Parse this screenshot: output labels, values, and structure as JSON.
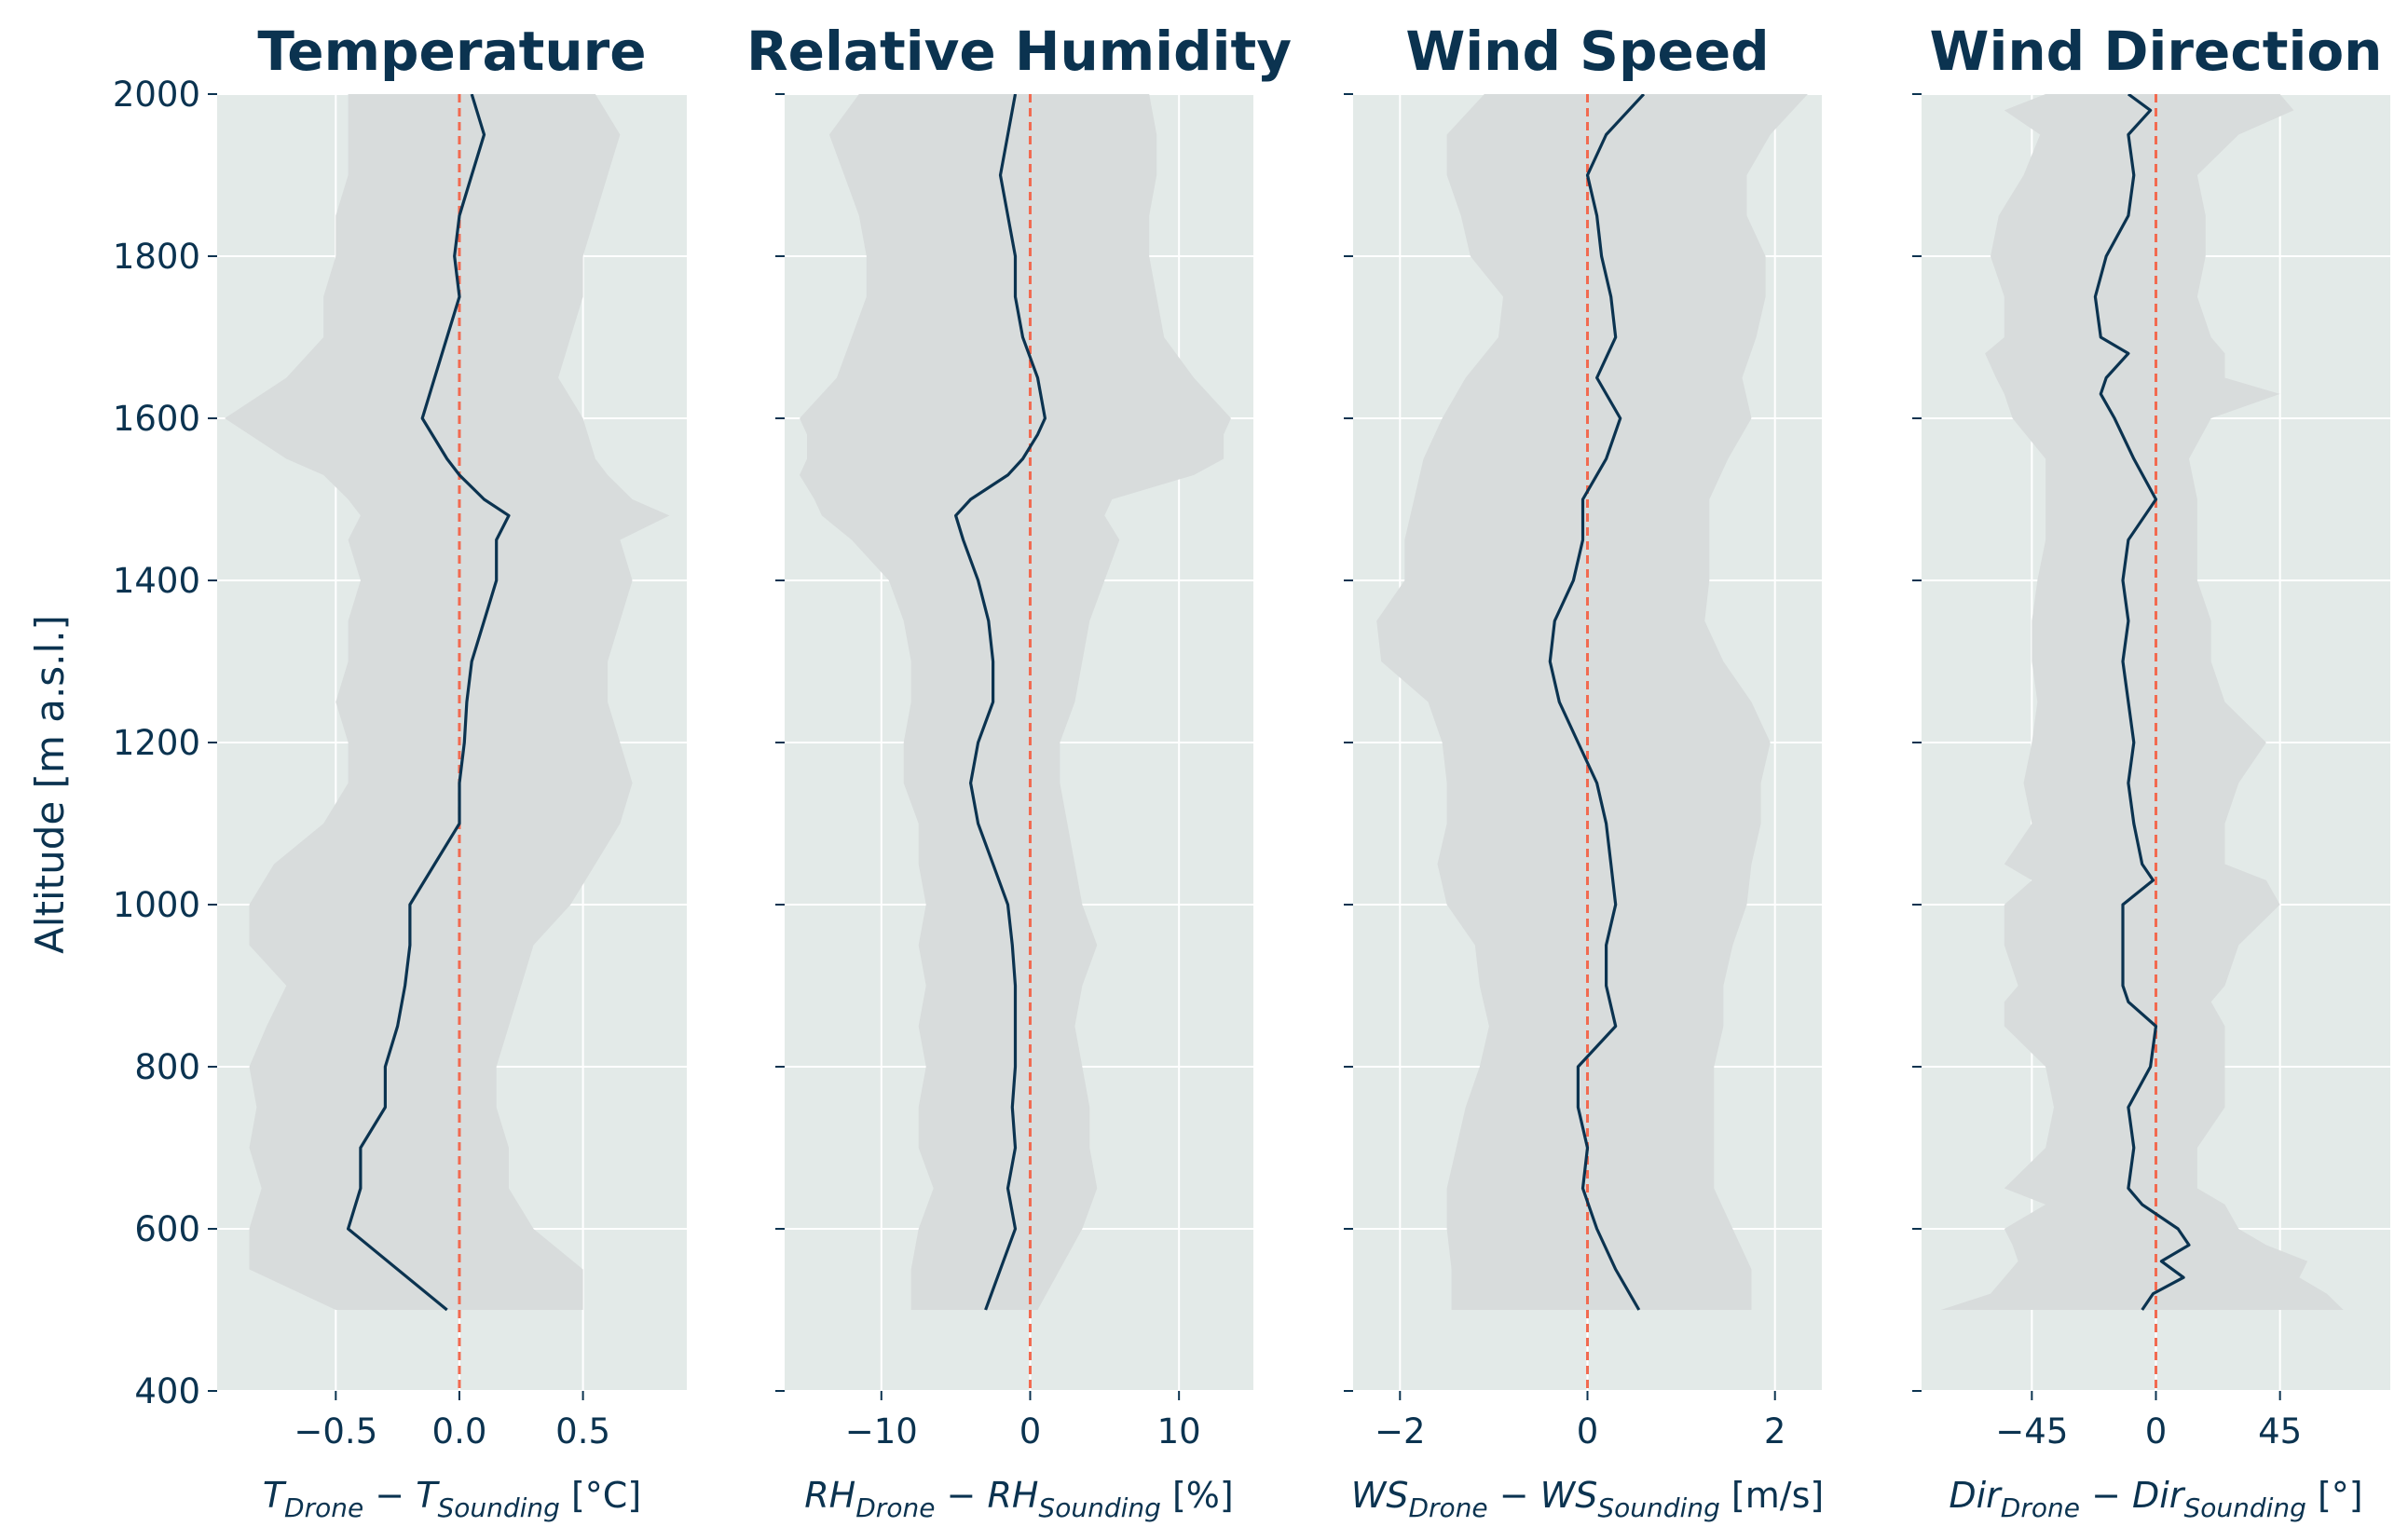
{
  "colors": {
    "panel_bg": "#e3eae8",
    "band": "#d8dcdc",
    "line": "#0b3350",
    "zero": "#f26a50",
    "grid": "#ffffff",
    "text": "#0b3350"
  },
  "chart_data": {
    "type": "line",
    "shared_y": {
      "label": "Altitude [m a.s.l.]",
      "ylim": [
        400,
        2000
      ],
      "ticks": [
        400,
        600,
        800,
        1000,
        1200,
        1400,
        1600,
        1800,
        2000
      ],
      "tick_labels": [
        "400",
        "600",
        "800",
        "1000",
        "1200",
        "1400",
        "1600",
        "1800",
        "2000"
      ]
    },
    "reference_line": {
      "x": 0,
      "style": "dashed"
    },
    "panels": [
      {
        "title": "Temperature",
        "xlabel": {
          "a": "T",
          "a_sub": "Drone",
          "op": "−",
          "b": "T",
          "b_sub": "Sounding",
          "unit": "[°C]"
        },
        "xlim": [
          -0.98,
          0.92
        ],
        "xticks": [
          -0.5,
          0.0,
          0.5
        ],
        "xtick_labels": [
          "−0.5",
          "0.0",
          "0.5"
        ],
        "altitude": [
          500,
          550,
          600,
          650,
          700,
          750,
          800,
          850,
          900,
          950,
          1000,
          1050,
          1100,
          1150,
          1200,
          1250,
          1300,
          1350,
          1400,
          1450,
          1480,
          1500,
          1530,
          1550,
          1600,
          1650,
          1700,
          1750,
          1800,
          1850,
          1900,
          1950,
          2000
        ],
        "mean": [
          -0.05,
          -0.25,
          -0.45,
          -0.4,
          -0.4,
          -0.3,
          -0.3,
          -0.25,
          -0.22,
          -0.2,
          -0.2,
          -0.1,
          0.0,
          0.0,
          0.02,
          0.03,
          0.05,
          0.1,
          0.15,
          0.15,
          0.2,
          0.1,
          0.0,
          -0.05,
          -0.15,
          -0.1,
          -0.05,
          0.0,
          -0.02,
          0.0,
          0.05,
          0.1,
          0.05
        ],
        "lower": [
          -0.5,
          -0.85,
          -0.85,
          -0.8,
          -0.85,
          -0.82,
          -0.85,
          -0.78,
          -0.7,
          -0.85,
          -0.85,
          -0.75,
          -0.55,
          -0.45,
          -0.45,
          -0.5,
          -0.45,
          -0.45,
          -0.4,
          -0.45,
          -0.4,
          -0.45,
          -0.55,
          -0.7,
          -0.95,
          -0.7,
          -0.55,
          -0.55,
          -0.5,
          -0.5,
          -0.45,
          -0.45,
          -0.45
        ],
        "upper": [
          0.5,
          0.5,
          0.3,
          0.2,
          0.2,
          0.15,
          0.15,
          0.2,
          0.25,
          0.3,
          0.45,
          0.55,
          0.65,
          0.7,
          0.65,
          0.6,
          0.6,
          0.65,
          0.7,
          0.65,
          0.85,
          0.7,
          0.6,
          0.55,
          0.5,
          0.4,
          0.45,
          0.5,
          0.5,
          0.55,
          0.6,
          0.65,
          0.55
        ]
      },
      {
        "title": "Relative Humidity",
        "xlabel": {
          "a": "RH",
          "a_sub": "Drone",
          "op": "−",
          "b": "RH",
          "b_sub": "Sounding",
          "unit": "[%]"
        },
        "xlim": [
          -16.5,
          15
        ],
        "xticks": [
          -10,
          0,
          10
        ],
        "xtick_labels": [
          "−10",
          "0",
          "10"
        ],
        "altitude": [
          500,
          550,
          600,
          650,
          700,
          750,
          800,
          850,
          900,
          950,
          1000,
          1050,
          1100,
          1150,
          1200,
          1250,
          1300,
          1350,
          1400,
          1450,
          1480,
          1500,
          1530,
          1550,
          1580,
          1600,
          1650,
          1700,
          1750,
          1800,
          1850,
          1900,
          1950,
          2000
        ],
        "mean": [
          -3,
          -2,
          -1,
          -1.5,
          -1,
          -1.2,
          -1,
          -1,
          -1,
          -1.2,
          -1.5,
          -2.5,
          -3.5,
          -4,
          -3.5,
          -2.5,
          -2.5,
          -2.8,
          -3.5,
          -4.5,
          -5,
          -4,
          -1.5,
          -0.5,
          0.5,
          1,
          0.5,
          -0.5,
          -1,
          -1,
          -1.5,
          -2,
          -1.5,
          -1
        ],
        "lower": [
          -8,
          -8,
          -7.5,
          -6.5,
          -7.5,
          -7.5,
          -7,
          -7.5,
          -7,
          -7.5,
          -7,
          -7.5,
          -7.5,
          -8.5,
          -8.5,
          -8,
          -8,
          -8.5,
          -9.5,
          -12,
          -14,
          -14.5,
          -15.5,
          -15,
          -15,
          -15.5,
          -13,
          -12,
          -11,
          -11,
          -11.5,
          -12.5,
          -13.5,
          -11.5
        ],
        "upper": [
          0.5,
          2,
          3.5,
          4.5,
          4,
          4,
          3.5,
          3,
          3.5,
          4.5,
          3.5,
          3,
          2.5,
          2,
          2,
          3,
          3.5,
          4,
          5,
          6,
          5,
          5.5,
          11,
          13,
          13,
          13.5,
          11,
          9,
          8.5,
          8,
          8,
          8.5,
          8.5,
          8
        ]
      },
      {
        "title": "Wind Speed",
        "xlabel": {
          "a": "WS",
          "a_sub": "Drone",
          "op": "−",
          "b": "WS",
          "b_sub": "Sounding",
          "unit": "[m/s]"
        },
        "xlim": [
          -2.5,
          2.5
        ],
        "xticks": [
          -2,
          0,
          2
        ],
        "xtick_labels": [
          "−2",
          "0",
          "2"
        ],
        "altitude": [
          500,
          550,
          600,
          650,
          700,
          750,
          800,
          850,
          900,
          950,
          1000,
          1050,
          1100,
          1150,
          1200,
          1250,
          1300,
          1350,
          1400,
          1450,
          1500,
          1550,
          1600,
          1650,
          1700,
          1750,
          1800,
          1850,
          1900,
          1950,
          2000
        ],
        "mean": [
          0.55,
          0.3,
          0.1,
          -0.05,
          0.0,
          -0.1,
          -0.1,
          0.3,
          0.2,
          0.2,
          0.3,
          0.25,
          0.2,
          0.1,
          -0.1,
          -0.3,
          -0.4,
          -0.35,
          -0.15,
          -0.05,
          -0.05,
          0.2,
          0.35,
          0.1,
          0.3,
          0.25,
          0.15,
          0.1,
          0.0,
          0.2,
          0.6
        ],
        "lower": [
          -1.45,
          -1.45,
          -1.5,
          -1.5,
          -1.4,
          -1.3,
          -1.15,
          -1.05,
          -1.15,
          -1.2,
          -1.5,
          -1.6,
          -1.5,
          -1.5,
          -1.55,
          -1.7,
          -2.2,
          -2.25,
          -1.95,
          -1.95,
          -1.85,
          -1.75,
          -1.55,
          -1.3,
          -0.95,
          -0.9,
          -1.25,
          -1.35,
          -1.5,
          -1.5,
          -1.1
        ],
        "upper": [
          1.75,
          1.75,
          1.55,
          1.35,
          1.35,
          1.35,
          1.35,
          1.45,
          1.45,
          1.55,
          1.7,
          1.75,
          1.85,
          1.85,
          1.95,
          1.75,
          1.45,
          1.25,
          1.3,
          1.3,
          1.3,
          1.5,
          1.75,
          1.65,
          1.8,
          1.9,
          1.9,
          1.7,
          1.7,
          1.95,
          2.35
        ]
      },
      {
        "title": "Wind Direction",
        "xlabel": {
          "a": "Dir",
          "a_sub": "Drone",
          "op": "−",
          "b": "Dir",
          "b_sub": "Sounding",
          "unit": "[°]"
        },
        "xlim": [
          -85,
          85
        ],
        "xticks": [
          -45,
          0,
          45
        ],
        "xtick_labels": [
          "−45",
          "0",
          "45"
        ],
        "altitude": [
          500,
          520,
          540,
          560,
          580,
          600,
          630,
          650,
          700,
          750,
          800,
          850,
          880,
          900,
          950,
          1000,
          1030,
          1050,
          1100,
          1150,
          1200,
          1250,
          1300,
          1350,
          1400,
          1450,
          1500,
          1550,
          1600,
          1630,
          1650,
          1680,
          1700,
          1750,
          1800,
          1850,
          1900,
          1950,
          1980,
          2000
        ],
        "mean": [
          -5,
          -1,
          10,
          2,
          12,
          8,
          -5,
          -10,
          -8,
          -10,
          -2,
          0,
          -10,
          -12,
          -12,
          -12,
          -1,
          -5,
          -8,
          -10,
          -8,
          -10,
          -12,
          -10,
          -12,
          -10,
          0,
          -8,
          -15,
          -20,
          -18,
          -10,
          -20,
          -22,
          -18,
          -10,
          -8,
          -10,
          -2,
          -10
        ],
        "lower": [
          -78,
          -60,
          -55,
          -50,
          -52,
          -55,
          -40,
          -55,
          -40,
          -37,
          -40,
          -55,
          -55,
          -50,
          -55,
          -55,
          -45,
          -55,
          -45,
          -48,
          -45,
          -43,
          -45,
          -45,
          -43,
          -40,
          -40,
          -40,
          -52,
          -55,
          -58,
          -62,
          -55,
          -55,
          -60,
          -57,
          -48,
          -42,
          -55,
          -40
        ],
        "upper": [
          68,
          62,
          52,
          55,
          40,
          30,
          25,
          15,
          15,
          25,
          25,
          25,
          20,
          25,
          30,
          45,
          40,
          25,
          25,
          30,
          40,
          25,
          20,
          20,
          15,
          15,
          15,
          12,
          20,
          45,
          25,
          25,
          20,
          15,
          18,
          18,
          15,
          30,
          50,
          45
        ]
      }
    ]
  }
}
